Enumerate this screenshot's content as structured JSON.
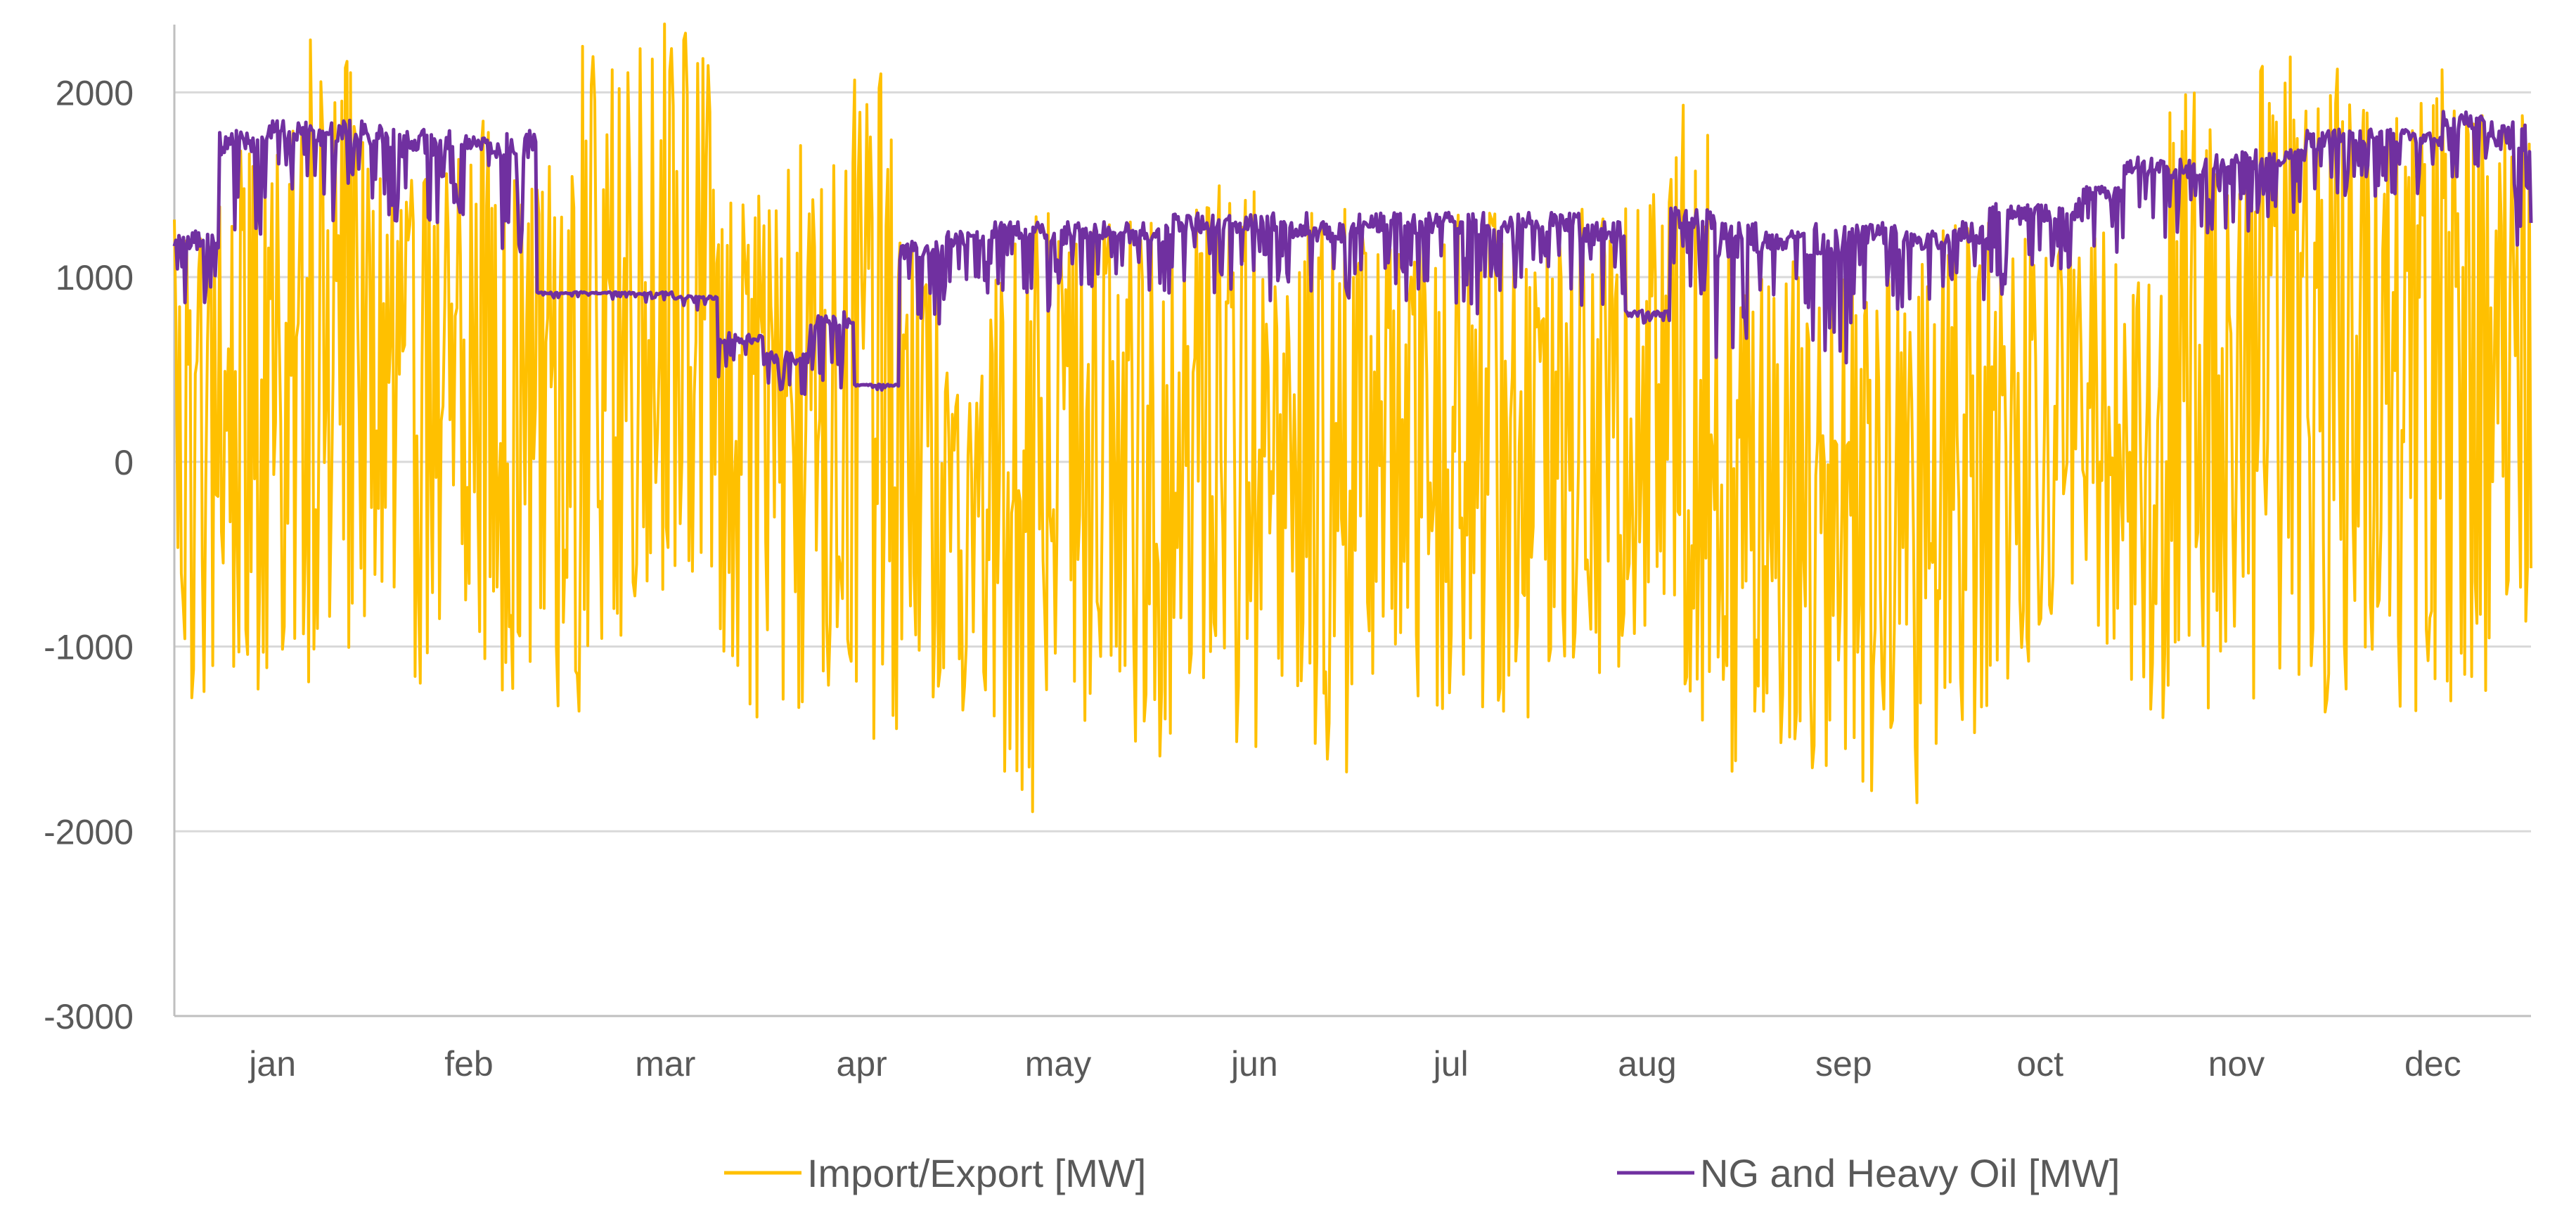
{
  "chart_data": {
    "type": "line",
    "title": "",
    "xlabel": "",
    "ylabel": "",
    "ylim": [
      -3000,
      2500
    ],
    "yticks": [
      -3000,
      -2000,
      -1000,
      0,
      1000,
      2000
    ],
    "ytick_labels": [
      "-3000",
      "-2000",
      "-1000",
      "0",
      "1000",
      "2000"
    ],
    "categories": [
      "jan",
      "feb",
      "mar",
      "apr",
      "may",
      "jun",
      "jul",
      "aug",
      "sep",
      "oct",
      "nov",
      "dec"
    ],
    "x_unit": "week of year (1 to 52), hourly data summarized weekly",
    "grid": "horizontal",
    "legend_position": "bottom",
    "series": [
      {
        "name": "Import/Export [MW]",
        "color": "#FFC000",
        "weeks": [
          1,
          2,
          3,
          4,
          5,
          6,
          7,
          8,
          9,
          10,
          11,
          12,
          13,
          14,
          15,
          16,
          17,
          18,
          19,
          20,
          21,
          22,
          23,
          24,
          25,
          26,
          27,
          28,
          29,
          30,
          31,
          32,
          33,
          34,
          35,
          36,
          37,
          38,
          39,
          40,
          41,
          42,
          43,
          44,
          45,
          46,
          47,
          48,
          49,
          50,
          51,
          52
        ],
        "max": [
          1400,
          1700,
          1800,
          2300,
          1900,
          1700,
          1900,
          1700,
          1600,
          2250,
          2400,
          2350,
          1500,
          1750,
          1700,
          2150,
          1300,
          500,
          1200,
          1400,
          1300,
          1300,
          1400,
          1500,
          1200,
          1400,
          1300,
          1200,
          1400,
          1350,
          1350,
          1400,
          1500,
          1950,
          1200,
          1100,
          1000,
          1100,
          1100,
          1300,
          1300,
          1200,
          1300,
          1000,
          2000,
          1800,
          2200,
          2300,
          2000,
          2050,
          2150,
          1900
        ],
        "min": [
          -1450,
          -1500,
          -1200,
          -1100,
          -1000,
          -1200,
          -1100,
          -1250,
          -1450,
          -1000,
          -800,
          -800,
          -1550,
          -1400,
          -1350,
          -1500,
          -1400,
          -1350,
          -1900,
          -1300,
          -1400,
          -1600,
          -1300,
          -1700,
          -1450,
          -1700,
          -1150,
          -1350,
          -1400,
          -1450,
          -1100,
          -1200,
          -1050,
          -1400,
          -1700,
          -1600,
          -1750,
          -1800,
          -1850,
          -1550,
          -1200,
          -900,
          -1000,
          -1400,
          -1400,
          -1300,
          -1200,
          -1400,
          -1100,
          -1350,
          -1300,
          -1000
        ]
      },
      {
        "name": "NG and Heavy Oil [MW]",
        "color": "#7030A0",
        "weeks": [
          1,
          2,
          3,
          4,
          5,
          6,
          7,
          8,
          9,
          10,
          11,
          12,
          13,
          14,
          15,
          16,
          17,
          18,
          19,
          20,
          21,
          22,
          23,
          24,
          25,
          26,
          27,
          28,
          29,
          30,
          31,
          32,
          33,
          34,
          35,
          36,
          37,
          38,
          39,
          40,
          41,
          42,
          43,
          44,
          45,
          46,
          47,
          48,
          49,
          50,
          51,
          52
        ],
        "max": [
          1250,
          1800,
          1850,
          1850,
          1850,
          1800,
          1820,
          1800,
          920,
          920,
          920,
          900,
          700,
          600,
          820,
          420,
          1200,
          1250,
          1300,
          1300,
          1300,
          1300,
          1350,
          1350,
          1350,
          1300,
          1350,
          1350,
          1350,
          1350,
          1350,
          1300,
          820,
          1380,
          1300,
          1250,
          1300,
          1300,
          1250,
          1300,
          1400,
          1400,
          1500,
          1650,
          1650,
          1700,
          1700,
          1800,
          1800,
          1800,
          1900,
          1850
        ],
        "min": [
          850,
          1200,
          1400,
          1300,
          1250,
          1200,
          1300,
          1100,
          880,
          880,
          860,
          820,
          450,
          300,
          400,
          380,
          700,
          900,
          900,
          800,
          900,
          800,
          900,
          900,
          800,
          850,
          900,
          850,
          800,
          900,
          900,
          800,
          750,
          900,
          500,
          800,
          500,
          800,
          800,
          800,
          900,
          1000,
          1100,
          1200,
          1200,
          1250,
          1300,
          1350,
          1400,
          1450,
          1500,
          1150
        ]
      }
    ]
  }
}
